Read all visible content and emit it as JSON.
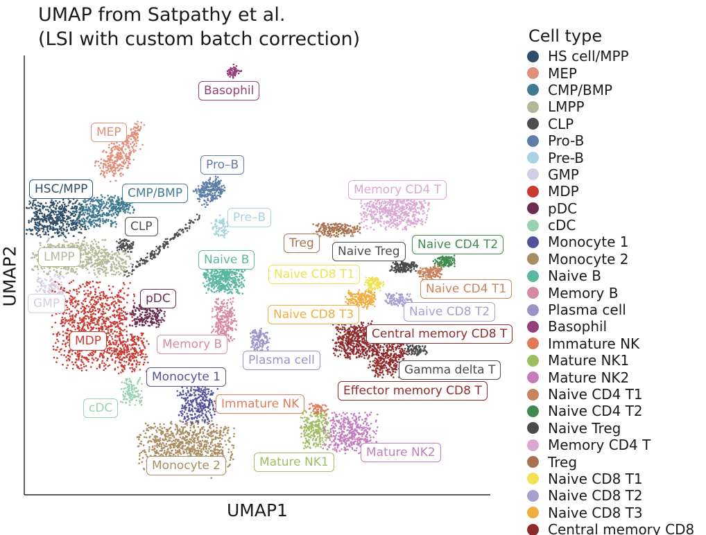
{
  "chart_data": {
    "type": "scatter",
    "title": [
      "UMAP from Satpathy et al.",
      "(LSI with custom batch correction)"
    ],
    "xlabel": "UMAP1",
    "ylabel": "UMAP2",
    "grid": false,
    "legend_position": "right",
    "legend_title": "Cell type",
    "series": [
      {
        "name": "HS cell/MPP",
        "color": "#2e4e67"
      },
      {
        "name": "MEP",
        "color": "#e0907a"
      },
      {
        "name": "CMP/BMP",
        "color": "#3f7a92"
      },
      {
        "name": "LMPP",
        "color": "#b5b897"
      },
      {
        "name": "CLP",
        "color": "#4d4d4d"
      },
      {
        "name": "Pro-B",
        "color": "#5e7ea7"
      },
      {
        "name": "Pre-B",
        "color": "#a9d3e2"
      },
      {
        "name": "GMP",
        "color": "#d5cde2"
      },
      {
        "name": "MDP",
        "color": "#c93a33"
      },
      {
        "name": "pDC",
        "color": "#6b2d4f"
      },
      {
        "name": "cDC",
        "color": "#98d2b0"
      },
      {
        "name": "Monocyte 1",
        "color": "#55509a"
      },
      {
        "name": "Monocyte 2",
        "color": "#a98d62"
      },
      {
        "name": "Naive B",
        "color": "#5cb7a1"
      },
      {
        "name": "Memory B",
        "color": "#d58aa1"
      },
      {
        "name": "Plasma cell",
        "color": "#9c93c5"
      },
      {
        "name": "Basophil",
        "color": "#95407a"
      },
      {
        "name": "Immature NK",
        "color": "#e07b5a"
      },
      {
        "name": "Mature NK1",
        "color": "#9fbe63"
      },
      {
        "name": "Mature NK2",
        "color": "#c37dbd"
      },
      {
        "name": "Naive CD4 T1",
        "color": "#c8845f"
      },
      {
        "name": "Naive CD4 T2",
        "color": "#3f8a4e"
      },
      {
        "name": "Naive Treg",
        "color": "#4a4a4a"
      },
      {
        "name": "Memory CD4 T",
        "color": "#daa8d3"
      },
      {
        "name": "Treg",
        "color": "#a8714f"
      },
      {
        "name": "Naive CD8 T1",
        "color": "#f1e253"
      },
      {
        "name": "Naive CD8 T2",
        "color": "#a79fcf"
      },
      {
        "name": "Naive CD8 T3",
        "color": "#f0ae42"
      },
      {
        "name": "Central memory CD8",
        "color": "#8f2a2a"
      }
    ],
    "cluster_labels": [
      {
        "text": "Basophil",
        "series": 16
      },
      {
        "text": "MEP",
        "series": 1
      },
      {
        "text": "Pro–B",
        "series": 5
      },
      {
        "text": "HSC/MPP",
        "series": 0
      },
      {
        "text": "CMP/BMP",
        "series": 2
      },
      {
        "text": "Memory CD4 T",
        "series": 23
      },
      {
        "text": "Pre–B",
        "series": 6
      },
      {
        "text": "CLP",
        "series": 4
      },
      {
        "text": "Treg",
        "series": 24
      },
      {
        "text": "Naive Treg",
        "series": 22
      },
      {
        "text": "Naive CD4 T2",
        "series": 21
      },
      {
        "text": "LMPP",
        "series": 3
      },
      {
        "text": "Naive B",
        "series": 13
      },
      {
        "text": "Naive CD8 T1",
        "series": 25
      },
      {
        "text": "Naive CD4 T1",
        "series": 20
      },
      {
        "text": "GMP",
        "series": 7
      },
      {
        "text": "pDC",
        "series": 9
      },
      {
        "text": "Naive CD8 T2",
        "series": 26
      },
      {
        "text": "Naive CD8 T3",
        "series": 27
      },
      {
        "text": "Central memory CD8 T",
        "series": 28
      },
      {
        "text": "MDP",
        "series": 8
      },
      {
        "text": "Memory B",
        "series": 14
      },
      {
        "text": "Plasma cell",
        "series": 15
      },
      {
        "text": "Gamma delta T",
        "series": 22
      },
      {
        "text": "Monocyte 1",
        "series": 11
      },
      {
        "text": "Effector memory CD8 T",
        "series": 28
      },
      {
        "text": "cDC",
        "series": 10
      },
      {
        "text": "Immature NK",
        "series": 17
      },
      {
        "text": "Mature NK2",
        "series": 19
      },
      {
        "text": "Mature NK1",
        "series": 18
      },
      {
        "text": "Monocyte 2",
        "series": 12
      }
    ]
  }
}
